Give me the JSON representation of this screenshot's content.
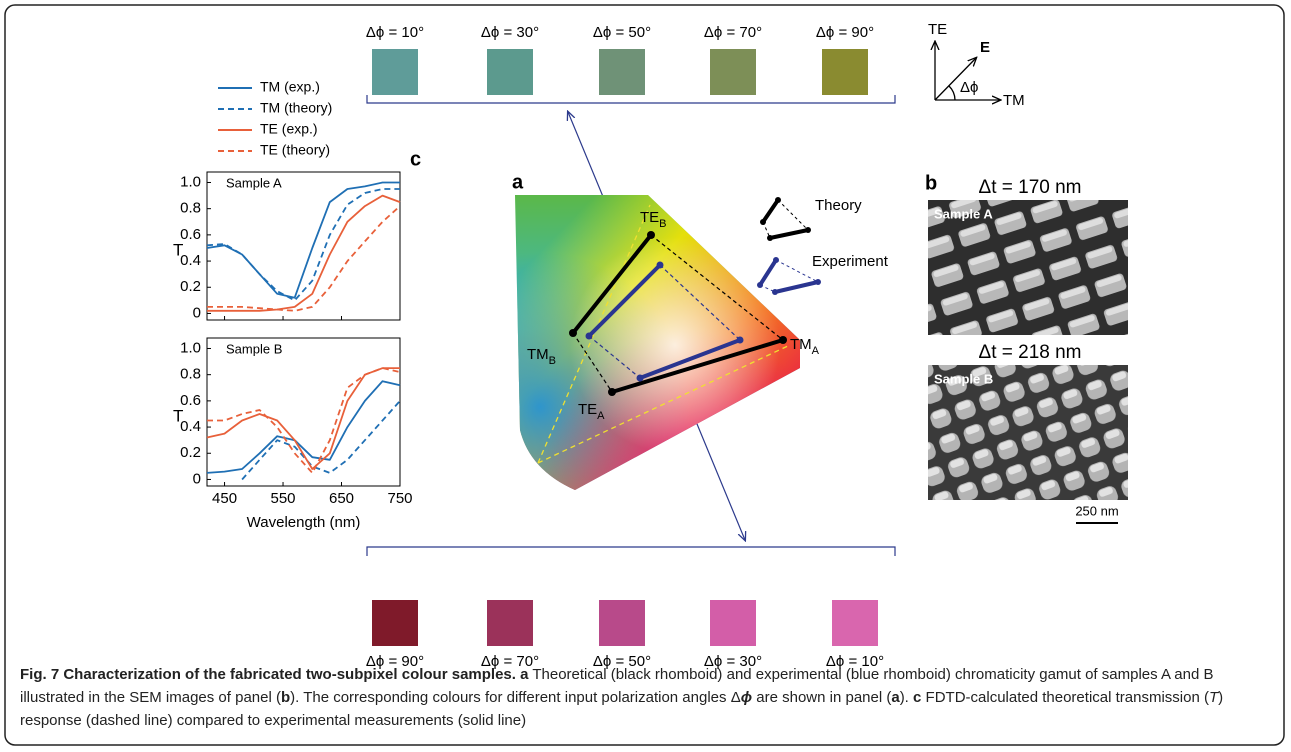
{
  "figure": {
    "top_swatches": [
      {
        "label": "Δϕ = 10°",
        "color": "#5f9c99"
      },
      {
        "label": "Δϕ = 30°",
        "color": "#5c9a8e"
      },
      {
        "label": "Δϕ = 50°",
        "color": "#6f9277"
      },
      {
        "label": "Δϕ = 70°",
        "color": "#7d8f57"
      },
      {
        "label": "Δϕ = 90°",
        "color": "#8a8b30"
      }
    ],
    "bottom_swatches": [
      {
        "label": "Δϕ = 90°",
        "color": "#7f1a2a"
      },
      {
        "label": "Δϕ = 70°",
        "color": "#9b325a"
      },
      {
        "label": "Δϕ = 50°",
        "color": "#b84a8a"
      },
      {
        "label": "Δϕ = 30°",
        "color": "#d35ea8"
      },
      {
        "label": "Δϕ = 10°",
        "color": "#d966ae"
      }
    ],
    "polarization": {
      "te": "TE",
      "e": "E",
      "dphi": "Δϕ",
      "tm": "TM"
    },
    "panel_a": {
      "letter": "a",
      "te_b": {
        "main": "TE",
        "sub": "B"
      },
      "tm_b": {
        "main": "TM",
        "sub": "B"
      },
      "te_a": {
        "main": "TE",
        "sub": "A"
      },
      "tm_a": {
        "main": "TM",
        "sub": "A"
      },
      "theory": "Theory",
      "experiment": "Experiment"
    },
    "panel_b": {
      "letter": "b",
      "dt_a": "Δt = 170 nm",
      "sample_a": "Sample A",
      "dt_b": "Δt = 218 nm",
      "sample_b": "Sample B",
      "scale": "250 nm"
    },
    "panel_c": {
      "letter": "c"
    }
  },
  "chart_data": [
    {
      "type": "line",
      "title": "Sample A",
      "ylabel": "T",
      "x": [
        420,
        450,
        480,
        510,
        540,
        570,
        600,
        630,
        660,
        690,
        720,
        750
      ],
      "xlim": [
        420,
        750
      ],
      "xticks": [
        450,
        550,
        650,
        750
      ],
      "ylim": [
        -0.05,
        1.08
      ],
      "yticks": [
        0,
        0.2,
        0.4,
        0.6,
        0.8,
        {
          "value": 1,
          "label": "1.0"
        }
      ],
      "series": [
        {
          "name": "TM (exp.)",
          "color": "#1f6fb4",
          "dash": false,
          "values": [
            0.5,
            0.52,
            0.45,
            0.3,
            0.15,
            0.12,
            0.5,
            0.85,
            0.95,
            0.97,
            1.0,
            1.0
          ]
        },
        {
          "name": "TM (theory)",
          "color": "#1f6fb4",
          "dash": true,
          "values": [
            0.52,
            0.53,
            0.45,
            0.3,
            0.17,
            0.1,
            0.25,
            0.6,
            0.83,
            0.92,
            0.95,
            0.95
          ]
        },
        {
          "name": "TE (exp.)",
          "color": "#e8603a",
          "dash": false,
          "values": [
            0.02,
            0.02,
            0.02,
            0.02,
            0.03,
            0.05,
            0.15,
            0.45,
            0.7,
            0.82,
            0.9,
            0.85
          ]
        },
        {
          "name": "TE (theory)",
          "color": "#e8603a",
          "dash": true,
          "values": [
            0.05,
            0.05,
            0.05,
            0.04,
            0.03,
            0.02,
            0.05,
            0.2,
            0.4,
            0.55,
            0.7,
            0.82
          ]
        }
      ]
    },
    {
      "type": "line",
      "title": "Sample B",
      "ylabel": "T",
      "xlabel": "Wavelength (nm)",
      "x": [
        420,
        450,
        480,
        510,
        540,
        570,
        600,
        630,
        660,
        690,
        720,
        750
      ],
      "xlim": [
        420,
        750
      ],
      "xticks": [
        450,
        550,
        650,
        750
      ],
      "ylim": [
        -0.05,
        1.08
      ],
      "yticks": [
        0,
        0.2,
        0.4,
        0.6,
        0.8,
        {
          "value": 1,
          "label": "1.0"
        }
      ],
      "series": [
        {
          "color": "#1f6fb4",
          "dash": false,
          "values": [
            0.05,
            0.06,
            0.08,
            0.2,
            0.33,
            0.3,
            0.17,
            0.15,
            0.4,
            0.6,
            0.75,
            0.72
          ]
        },
        {
          "color": "#1f6fb4",
          "dash": true,
          "values": [
            null,
            null,
            0.0,
            0.15,
            0.3,
            0.25,
            0.1,
            0.05,
            0.15,
            0.3,
            0.45,
            0.6
          ]
        },
        {
          "color": "#e8603a",
          "dash": false,
          "values": [
            0.32,
            0.35,
            0.45,
            0.5,
            0.45,
            0.3,
            0.08,
            0.2,
            0.6,
            0.8,
            0.85,
            0.85
          ]
        },
        {
          "color": "#e8603a",
          "dash": true,
          "values": [
            0.45,
            0.45,
            0.5,
            0.53,
            0.4,
            0.2,
            0.05,
            0.3,
            0.7,
            0.8,
            0.85,
            0.82
          ]
        }
      ]
    }
  ],
  "caption": {
    "title": "Fig. 7 Characterization of the fabricated two-subpixel colour samples.",
    "runs": [
      {
        "text": "a",
        "style": "bold"
      },
      {
        "text": " Theoretical (black rhomboid) and experimental (blue rhomboid) chromaticity gamut of samples A and B illustrated in the SEM images of panel (",
        "style": "normal"
      },
      {
        "text": "b",
        "style": "bold"
      },
      {
        "text": "). The corresponding colours for different input polarization angles ",
        "style": "normal"
      },
      {
        "text": "Δ",
        "style": "normal"
      },
      {
        "text": "ϕ",
        "style": "bolditalic"
      },
      {
        "text": " are shown in panel (",
        "style": "normal"
      },
      {
        "text": "a",
        "style": "bold"
      },
      {
        "text": "). ",
        "style": "normal"
      },
      {
        "text": "c",
        "style": "bold"
      },
      {
        "text": " FDTD-calculated theoretical transmission (",
        "style": "normal"
      },
      {
        "text": "T",
        "style": "italic"
      },
      {
        "text": ") response (dashed line) compared to experimental measurements (solid line)",
        "style": "normal"
      }
    ]
  }
}
